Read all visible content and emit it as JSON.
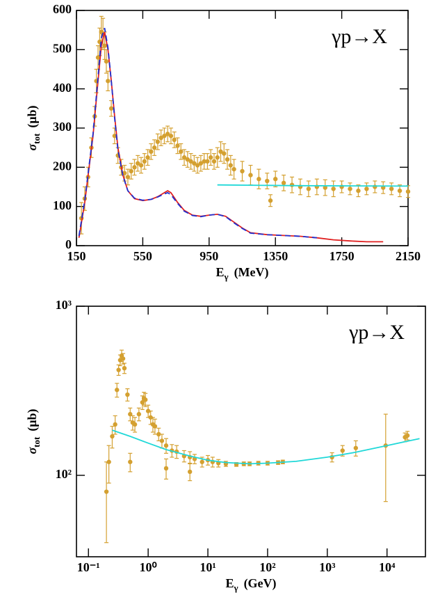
{
  "chart_data": [
    {
      "type": "scatter",
      "annotation": "γp→X",
      "xlabel": {
        "symbol": "E",
        "sub": "γ",
        "unit": "(MeV)"
      },
      "ylabel": {
        "symbol": "σ",
        "sub": "tot",
        "unit": "(μb)"
      },
      "xscale": "linear",
      "yscale": "linear",
      "xlim": [
        150,
        2150
      ],
      "ylim": [
        0,
        600
      ],
      "xticks": [
        150,
        550,
        950,
        1350,
        1750,
        2150
      ],
      "yticks": [
        0,
        100,
        200,
        300,
        400,
        500,
        600
      ],
      "series": [
        {
          "style": "points",
          "color": "#d4a030",
          "x": [
            180,
            200,
            220,
            240,
            260,
            270,
            280,
            290,
            300,
            310,
            320,
            330,
            340,
            360,
            380,
            400,
            420,
            440,
            460,
            480,
            500,
            520,
            540,
            560,
            580,
            600,
            620,
            640,
            660,
            680,
            700,
            720,
            740,
            760,
            780,
            800,
            820,
            840,
            860,
            880,
            900,
            920,
            940,
            960,
            980,
            1000,
            1020,
            1040,
            1060,
            1080,
            1100,
            1150,
            1200,
            1250,
            1300,
            1320,
            1350,
            1400,
            1450,
            1500,
            1550,
            1600,
            1650,
            1700,
            1750,
            1800,
            1850,
            1900,
            1950,
            2000,
            2050,
            2100,
            2150
          ],
          "values": [
            70,
            120,
            175,
            250,
            330,
            420,
            480,
            520,
            545,
            540,
            510,
            470,
            420,
            350,
            280,
            230,
            200,
            185,
            175,
            190,
            200,
            210,
            205,
            215,
            225,
            240,
            250,
            265,
            275,
            280,
            285,
            280,
            270,
            255,
            240,
            225,
            220,
            215,
            210,
            205,
            210,
            215,
            215,
            225,
            215,
            225,
            240,
            235,
            220,
            205,
            195,
            190,
            180,
            170,
            165,
            115,
            170,
            160,
            155,
            150,
            145,
            150,
            148,
            145,
            150,
            145,
            140,
            145,
            150,
            148,
            145,
            140,
            138
          ],
          "errors": [
            40,
            30,
            25,
            25,
            25,
            30,
            30,
            35,
            40,
            40,
            35,
            30,
            25,
            20,
            20,
            20,
            20,
            20,
            20,
            20,
            20,
            20,
            20,
            20,
            20,
            20,
            20,
            20,
            20,
            20,
            20,
            20,
            20,
            20,
            20,
            20,
            20,
            20,
            20,
            20,
            20,
            20,
            20,
            20,
            20,
            25,
            25,
            25,
            25,
            25,
            25,
            25,
            25,
            25,
            20,
            15,
            20,
            20,
            20,
            20,
            20,
            20,
            20,
            20,
            15,
            15,
            15,
            15,
            15,
            15,
            15,
            15,
            15
          ]
        },
        {
          "style": "line",
          "color": "#e02020",
          "x": [
            165,
            200,
            250,
            280,
            300,
            320,
            340,
            360,
            380,
            400,
            430,
            460,
            500,
            550,
            600,
            640,
            680,
            700,
            720,
            760,
            800,
            850,
            900,
            950,
            1000,
            1050,
            1100,
            1150,
            1200,
            1300,
            1400,
            1500,
            1600,
            1700,
            1800,
            1900,
            2000
          ],
          "values": [
            20,
            110,
            280,
            420,
            510,
            545,
            500,
            420,
            330,
            250,
            180,
            140,
            120,
            115,
            118,
            125,
            135,
            140,
            135,
            110,
            90,
            78,
            75,
            78,
            80,
            75,
            60,
            45,
            33,
            28,
            26,
            24,
            20,
            15,
            12,
            10,
            10
          ]
        },
        {
          "style": "dashed",
          "color": "#2030d0",
          "x": [
            165,
            200,
            250,
            280,
            300,
            320,
            340,
            360,
            380,
            400,
            430,
            460,
            500,
            550,
            600,
            640,
            680,
            700,
            720,
            760,
            800,
            850,
            900,
            950,
            1000,
            1050,
            1100,
            1150,
            1200,
            1300,
            1400,
            1500,
            1600
          ],
          "values": [
            25,
            115,
            285,
            430,
            530,
            555,
            505,
            420,
            325,
            245,
            178,
            140,
            121,
            116,
            118,
            124,
            132,
            135,
            130,
            108,
            88,
            77,
            74,
            78,
            80,
            74,
            58,
            44,
            32,
            28,
            26,
            24,
            20
          ]
        },
        {
          "style": "line",
          "color": "#20d8d8",
          "x": [
            1000,
            1500,
            2150
          ],
          "values": [
            155,
            153,
            152
          ]
        }
      ]
    },
    {
      "type": "scatter",
      "annotation": "γp→X",
      "xlabel": {
        "symbol": "E",
        "sub": "γ",
        "unit": "(GeV)"
      },
      "ylabel": {
        "symbol": "σ",
        "sub": "tot",
        "unit": "(μb)"
      },
      "xscale": "log",
      "yscale": "log",
      "xlim": [
        0.063,
        44000
      ],
      "ylim": [
        33,
        1000
      ],
      "xticks": [
        {
          "value": 0.1,
          "label": "10⁻¹"
        },
        {
          "value": 1,
          "label": "10⁰"
        },
        {
          "value": 10,
          "label": "10¹"
        },
        {
          "value": 100,
          "label": "10²"
        },
        {
          "value": 1000,
          "label": "10³"
        },
        {
          "value": 10000,
          "label": "10⁴"
        }
      ],
      "yticks": [
        {
          "value": 100,
          "label": "10²"
        },
        {
          "value": 1000,
          "label": "10³"
        }
      ],
      "series": [
        {
          "style": "points",
          "color": "#d4a030",
          "x": [
            0.2,
            0.22,
            0.25,
            0.28,
            0.3,
            0.32,
            0.34,
            0.36,
            0.38,
            0.4,
            0.45,
            0.5,
            0.5,
            0.55,
            0.6,
            0.7,
            0.8,
            0.85,
            0.9,
            1.0,
            1.1,
            1.2,
            1.3,
            1.5,
            1.7,
            2,
            2,
            2.5,
            3,
            4,
            5,
            5,
            6,
            8,
            10,
            12,
            15,
            20,
            30,
            40,
            50,
            70,
            100,
            150,
            180,
            1200,
            1800,
            3000,
            9500,
            20000,
            22000
          ],
          "values": [
            80,
            120,
            170,
            200,
            320,
            420,
            480,
            510,
            490,
            430,
            300,
            230,
            120,
            205,
            200,
            230,
            270,
            285,
            280,
            240,
            220,
            200,
            195,
            175,
            160,
            150,
            110,
            140,
            138,
            130,
            128,
            105,
            125,
            120,
            123,
            120,
            118,
            117,
            116,
            117,
            117,
            118,
            118,
            119,
            120,
            128,
            140,
            145,
            150,
            168,
            172
          ],
          "errors": [
            40,
            30,
            25,
            25,
            30,
            30,
            35,
            40,
            35,
            30,
            25,
            20,
            15,
            20,
            20,
            20,
            25,
            25,
            25,
            20,
            20,
            20,
            20,
            15,
            15,
            15,
            15,
            12,
            12,
            10,
            10,
            12,
            8,
            8,
            8,
            8,
            6,
            4,
            3,
            3,
            3,
            3,
            3,
            3,
            3,
            8,
            10,
            15,
            80,
            10,
            10
          ]
        },
        {
          "style": "line",
          "color": "#20d8d8",
          "x": [
            0.25,
            0.5,
            1,
            2,
            5,
            10,
            20,
            50,
            100,
            300,
            1000,
            3000,
            10000,
            35000
          ],
          "values": [
            185,
            170,
            155,
            142,
            130,
            123,
            119,
            117,
            118,
            121,
            128,
            137,
            150,
            165
          ]
        }
      ]
    }
  ]
}
